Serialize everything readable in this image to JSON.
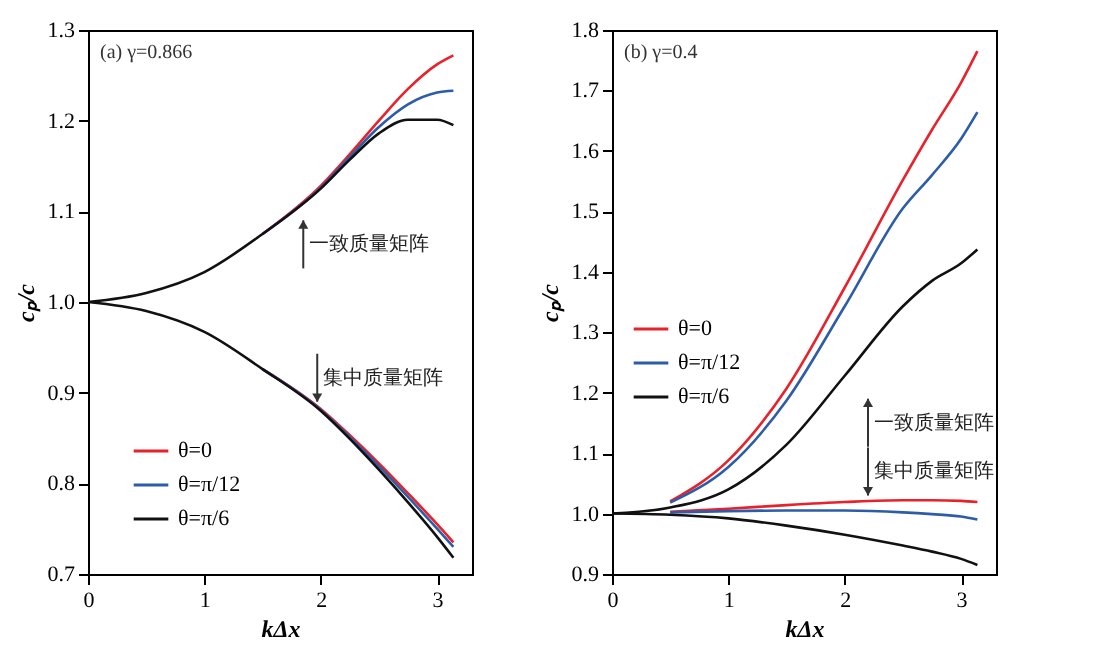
{
  "chart_data": [
    {
      "type": "line",
      "title": "(a) γ=0.866",
      "xlabel": "kΔx",
      "ylabel": "cₚ/c",
      "x": [
        0,
        0.5,
        1,
        1.5,
        2,
        2.25,
        2.5,
        2.75,
        3,
        3.14
      ],
      "xlim": [
        0,
        3.3
      ],
      "xticks": [
        0,
        1,
        2,
        3
      ],
      "ylim": [
        0.7,
        1.3
      ],
      "yticks": [
        0.7,
        0.8,
        0.9,
        {
          "value": 1.0,
          "label": "1.0"
        },
        1.1,
        1.2,
        1.3
      ],
      "legend": "bottom left",
      "grid": false,
      "marker": "none",
      "line_style": "solid",
      "series": [
        {
          "name": "θ=0",
          "color": "#e8212a",
          "values": [
            null,
            null,
            null,
            1.075,
            1.128,
            1.163,
            1.2,
            1.235,
            1.262,
            1.272
          ]
        },
        {
          "name": "θ=π/12",
          "color": "#2d5da8",
          "values": [
            null,
            null,
            null,
            1.075,
            1.126,
            1.16,
            1.193,
            1.218,
            1.231,
            1.233
          ]
        },
        {
          "name": "θ=π/6",
          "color": "#111111",
          "values": [
            1,
            1.01,
            1.033,
            1.075,
            1.125,
            1.157,
            1.186,
            1.201,
            1.201,
            1.195
          ]
        },
        {
          "color": "#e8212a",
          "values": [
            null,
            null,
            null,
            0.926,
            0.882,
            0.853,
            0.822,
            0.789,
            0.755,
            0.735
          ]
        },
        {
          "color": "#2d5da8",
          "values": [
            null,
            null,
            null,
            0.926,
            0.881,
            0.851,
            0.819,
            0.785,
            0.75,
            0.73
          ]
        },
        {
          "color": "#111111",
          "values": [
            1,
            0.99,
            0.967,
            0.926,
            0.88,
            0.849,
            0.815,
            0.779,
            0.741,
            0.718
          ]
        }
      ],
      "annotations": [
        {
          "text": "一致质量矩阵",
          "x": 1.85,
          "y": 1.09
        },
        {
          "text": "集中质量矩阵",
          "x": 1.97,
          "y": 0.89
        }
      ]
    },
    {
      "type": "line",
      "title": "(b) γ=0.4",
      "xlabel": "kΔx",
      "ylabel": "cₚ/c",
      "x": [
        0,
        0.5,
        1,
        1.5,
        2,
        2.5,
        2.75,
        3,
        3.14
      ],
      "xlim": [
        0,
        3.3
      ],
      "xticks": [
        0,
        1,
        2,
        3
      ],
      "ylim": [
        0.9,
        1.8
      ],
      "yticks": [
        0.9,
        {
          "value": 1.0,
          "label": "1.0"
        },
        1.1,
        1.2,
        1.3,
        1.4,
        1.5,
        1.6,
        1.7,
        1.8
      ],
      "legend": "left",
      "grid": false,
      "marker": "none",
      "line_style": "solid",
      "series": [
        {
          "name": "θ=0",
          "color": "#e8212a",
          "values": [
            null,
            1.02,
            1.088,
            1.207,
            1.374,
            1.552,
            1.635,
            1.713,
            1.765
          ]
        },
        {
          "name": "θ=π/12",
          "color": "#2d5da8",
          "values": [
            null,
            1.018,
            1.077,
            1.187,
            1.343,
            1.505,
            1.56,
            1.62,
            1.664
          ]
        },
        {
          "name": "θ=π/6",
          "color": "#111111",
          "values": [
            1,
            1.01,
            1.04,
            1.114,
            1.228,
            1.343,
            1.385,
            1.414,
            1.437
          ]
        },
        {
          "color": "#e8212a",
          "values": [
            null,
            1.003,
            1.008,
            1.014,
            1.019,
            1.022,
            1.022,
            1.021,
            1.019
          ]
        },
        {
          "color": "#2d5da8",
          "values": [
            null,
            1.002,
            1.004,
            1.005,
            1.005,
            1.002,
            0.999,
            0.995,
            0.99
          ]
        },
        {
          "color": "#111111",
          "values": [
            1,
            0.998,
            0.992,
            0.98,
            0.965,
            0.947,
            0.937,
            0.925,
            0.915
          ]
        }
      ],
      "annotations": [
        {
          "text": "一致质量矩阵",
          "x": 2.2,
          "y": 1.19
        },
        {
          "text": "集中质量矩阵",
          "x": 2.2,
          "y": 1.03
        }
      ]
    }
  ]
}
